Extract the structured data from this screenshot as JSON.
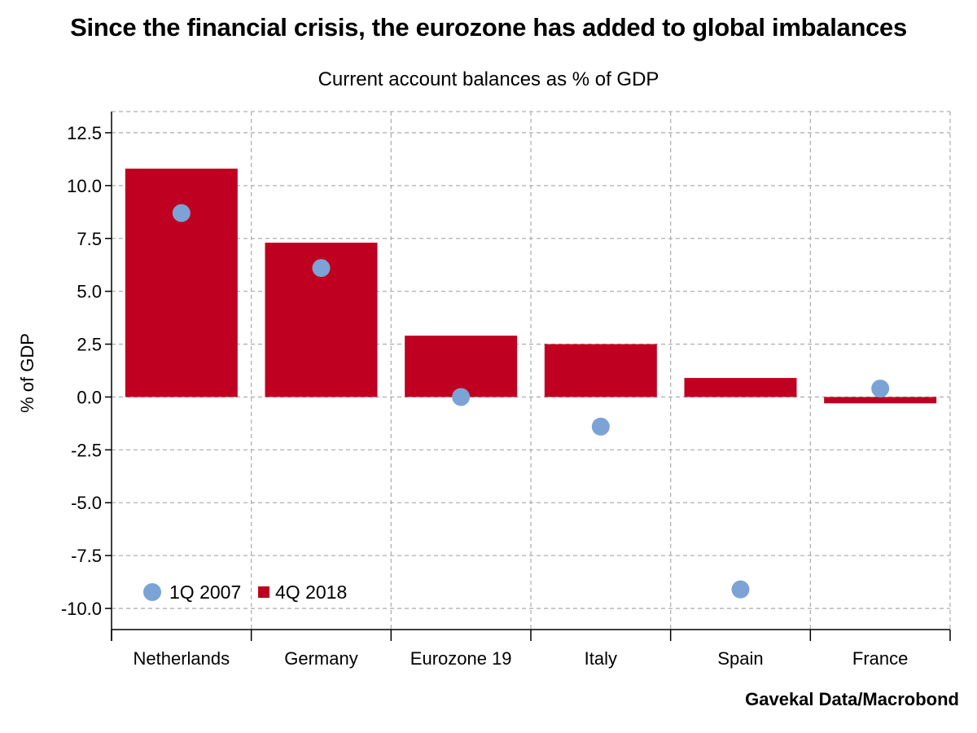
{
  "title": "Since the financial crisis, the eurozone has added to global imbalances",
  "subtitle": "Current account balances as % of GDP",
  "source": "Gavekal Data/Macrobond",
  "colors": {
    "bar": "#c00020",
    "dot": "#7ba3d6",
    "grid": "#b0b0b0",
    "axis": "#000000"
  },
  "chart_data": {
    "type": "bar",
    "ylabel": "% of GDP",
    "xlabel": "",
    "ylim": [
      -11,
      13.5
    ],
    "yticks": [
      12.5,
      10.0,
      7.5,
      5.0,
      2.5,
      0.0,
      -2.5,
      -5.0,
      -7.5,
      -10.0
    ],
    "ytick_labels": [
      "12.5",
      "10.0",
      "7.5",
      "5.0",
      "2.5",
      "0.0",
      "-2.5",
      "-5.0",
      "-7.5",
      "-10.0"
    ],
    "categories": [
      "Netherlands",
      "Germany",
      "Eurozone 19",
      "Italy",
      "Spain",
      "France"
    ],
    "series": [
      {
        "name": "4Q 2018",
        "kind": "bar",
        "values": [
          10.8,
          7.3,
          2.9,
          2.5,
          0.9,
          -0.3
        ]
      },
      {
        "name": "1Q 2007",
        "kind": "dot",
        "values": [
          8.7,
          6.1,
          0.0,
          -1.4,
          -9.1,
          0.4
        ]
      }
    ],
    "grid": true,
    "legend": "bottom-left",
    "legend_order": [
      "1Q 2007",
      "4Q 2018"
    ]
  }
}
